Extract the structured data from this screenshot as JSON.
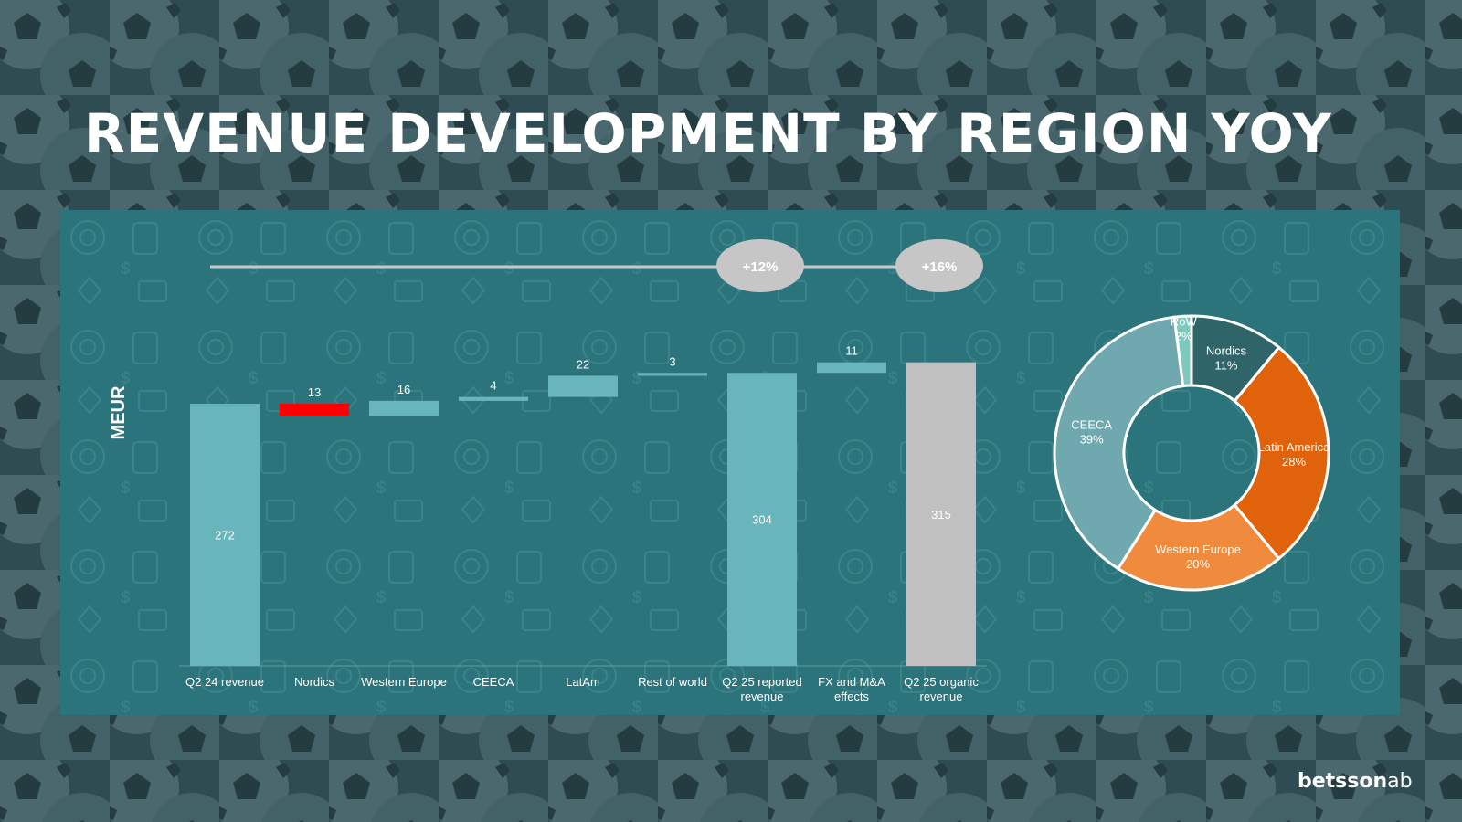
{
  "slide": {
    "title": "REVENUE DEVELOPMENT BY REGION YOY",
    "brand_bold": "betsson",
    "brand_light": "ab"
  },
  "colors": {
    "bar": "#68b6bc",
    "negative": "#ff0000",
    "organic": "#c0c0c0",
    "panel": "#2b747b",
    "nordics": "#2f6569",
    "latin_america": "#e0620a",
    "western_europe": "#f08a3c",
    "ceeca": "#70a8b0",
    "row": "#7ec9bb"
  },
  "icons": {
    "background": "soccer-ball-pattern",
    "panel": "casino-doodle-pattern"
  },
  "chart_data": [
    {
      "type": "bar",
      "subtype": "waterfall",
      "ylabel": "MEUR",
      "categories": [
        "Q2 24 revenue",
        "Nordics",
        "Western Europe",
        "CEECA",
        "LatAm",
        "Rest of world",
        "Q2 25 reported revenue",
        "FX and M&A effects",
        "Q2 25 organic revenue"
      ],
      "category_lines": [
        [
          "Q2 24 revenue"
        ],
        [
          "Nordics"
        ],
        [
          "Western Europe"
        ],
        [
          "CEECA"
        ],
        [
          "LatAm"
        ],
        [
          "Rest of world"
        ],
        [
          "Q2 25 reported",
          "revenue"
        ],
        [
          "FX and M&A",
          "effects"
        ],
        [
          "Q2 25 organic",
          "revenue"
        ]
      ],
      "labels": [
        "272",
        "13",
        "16",
        "4",
        "22",
        "3",
        "304",
        "11",
        "315"
      ],
      "bars": [
        {
          "base": 0,
          "top": 272,
          "kind": "total"
        },
        {
          "base": 259,
          "top": 272,
          "kind": "negative"
        },
        {
          "base": 259,
          "top": 275,
          "kind": "positive"
        },
        {
          "base": 275,
          "top": 279,
          "kind": "positive"
        },
        {
          "base": 279,
          "top": 301,
          "kind": "positive"
        },
        {
          "base": 301,
          "top": 304,
          "kind": "positive"
        },
        {
          "base": 0,
          "top": 304,
          "kind": "total"
        },
        {
          "base": 304,
          "top": 315,
          "kind": "positive"
        },
        {
          "base": 0,
          "top": 315,
          "kind": "organic"
        }
      ],
      "ylim": [
        0,
        330
      ],
      "grid": false,
      "growth_labels": [
        {
          "text": "+12%",
          "target": "Q2 25 reported revenue"
        },
        {
          "text": "+16%",
          "target": "Q2 25 organic revenue"
        }
      ]
    },
    {
      "type": "pie",
      "subtype": "donut",
      "slices": [
        {
          "name": "Nordics",
          "value": 11,
          "label": "11%",
          "color": "#2f6569"
        },
        {
          "name": "Latin America",
          "value": 28,
          "label": "28%",
          "color": "#e0620a"
        },
        {
          "name": "Western Europe",
          "value": 20,
          "label": "20%",
          "color": "#f08a3c"
        },
        {
          "name": "CEECA",
          "value": 39,
          "label": "39%",
          "color": "#70a8b0"
        },
        {
          "name": "RoW",
          "value": 2,
          "label": "2%",
          "color": "#7ec9bb"
        }
      ]
    }
  ]
}
